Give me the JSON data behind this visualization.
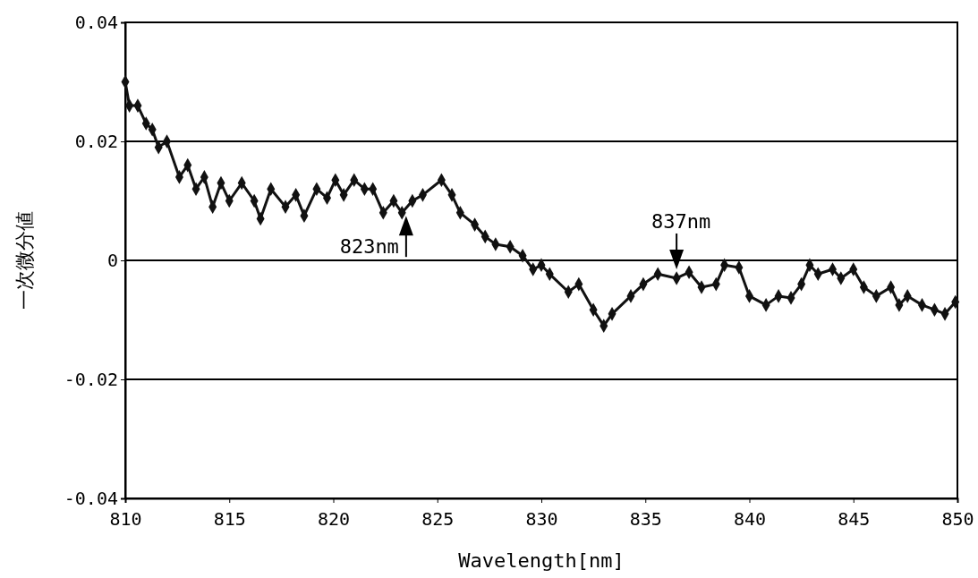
{
  "chart_data": {
    "type": "line",
    "xlabel": "Wavelength[nm]",
    "ylabel": "一次微分値",
    "x": [
      810,
      810.2,
      810.6,
      811,
      811.3,
      811.6,
      812,
      812.6,
      813,
      813.4,
      813.8,
      814.2,
      814.6,
      815,
      815.6,
      816.2,
      816.5,
      817,
      817.7,
      818.2,
      818.6,
      819.2,
      819.7,
      820.1,
      820.5,
      821,
      821.5,
      821.9,
      822.4,
      822.9,
      823.3,
      823.8,
      824.3,
      825.2,
      825.7,
      826.1,
      826.8,
      827.3,
      827.8,
      828.5,
      829.1,
      829.6,
      830,
      830.4,
      831.3,
      831.8,
      832.5,
      833,
      833.4,
      834.3,
      834.9,
      835.6,
      836.5,
      837.1,
      837.7,
      838.4,
      838.8,
      839.5,
      840,
      840.8,
      841.4,
      842,
      842.5,
      842.9,
      843.3,
      844,
      844.4,
      845,
      845.5,
      846.1,
      846.8,
      847.2,
      847.6,
      848.3,
      848.9,
      849.4,
      849.9
    ],
    "series": [
      {
        "color": "#111111",
        "values": [
          0.03,
          0.026,
          0.026,
          0.023,
          0.022,
          0.019,
          0.02,
          0.014,
          0.016,
          0.012,
          0.014,
          0.009,
          0.013,
          0.01,
          0.013,
          0.01,
          0.007,
          0.012,
          0.009,
          0.011,
          0.0075,
          0.012,
          0.0105,
          0.0135,
          0.011,
          0.0135,
          0.012,
          0.012,
          0.008,
          0.01,
          0.008,
          0.01,
          0.011,
          0.0135,
          0.011,
          0.008,
          0.006,
          0.004,
          0.0027,
          0.0023,
          0.0008,
          -0.0015,
          -0.0008,
          -0.0023,
          -0.0053,
          -0.004,
          -0.0083,
          -0.011,
          -0.009,
          -0.006,
          -0.004,
          -0.0023,
          -0.003,
          -0.002,
          -0.0045,
          -0.004,
          -0.0008,
          -0.0012,
          -0.006,
          -0.0075,
          -0.006,
          -0.0063,
          -0.004,
          -0.0008,
          -0.0023,
          -0.0015,
          -0.003,
          -0.0015,
          -0.0045,
          -0.006,
          -0.0045,
          -0.0075,
          -0.006,
          -0.0075,
          -0.0083,
          -0.009,
          -0.007
        ]
      }
    ],
    "xlim": [
      810,
      850
    ],
    "xticks": [
      810,
      815,
      820,
      825,
      830,
      835,
      840,
      845,
      850
    ],
    "ylim": [
      -0.04,
      0.04
    ],
    "yticks": [
      -0.04,
      -0.02,
      0,
      0.02,
      0.04
    ],
    "grid": "y",
    "marker": "diamond",
    "line_style": "solid",
    "annotations": [
      {
        "text": "823nm",
        "x": 823.5,
        "y": 0.009
      },
      {
        "text": "837nm",
        "x": 836.5,
        "y": -0.003
      }
    ]
  }
}
